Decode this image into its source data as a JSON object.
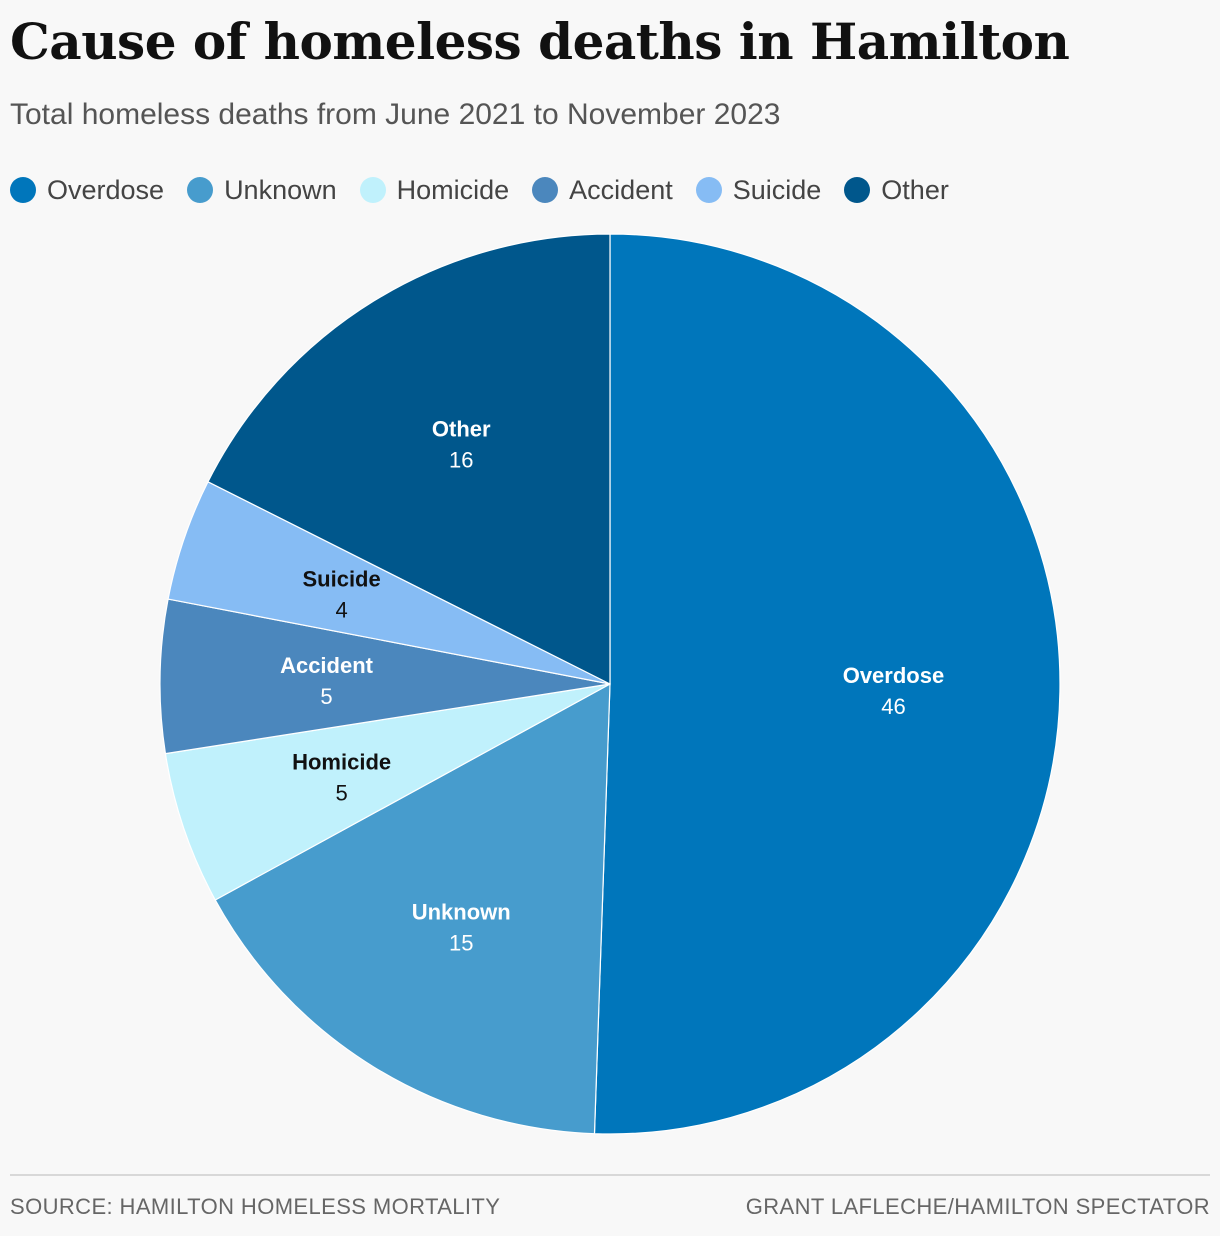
{
  "title": "Cause of homeless deaths in Hamilton",
  "subtitle": "Total homeless deaths from June 2021 to November 2023",
  "source": "SOURCE: HAMILTON HOMELESS MORTALITY",
  "credit": "GRANT LAFLECHE/HAMILTON SPECTATOR",
  "chart_data": {
    "type": "pie",
    "legend_position": "top-left",
    "slices": [
      {
        "label": "Overdose",
        "value": 46,
        "color": "#0076bb",
        "label_color": "#ffffff"
      },
      {
        "label": "Unknown",
        "value": 15,
        "color": "#479ccd",
        "label_color": "#ffffff"
      },
      {
        "label": "Homicide",
        "value": 5,
        "color": "#c0f1fc",
        "label_color": "#111111"
      },
      {
        "label": "Accident",
        "value": 5,
        "color": "#4b87bd",
        "label_color": "#ffffff"
      },
      {
        "label": "Suicide",
        "value": 4,
        "color": "#86bcf4",
        "label_color": "#111111"
      },
      {
        "label": "Other",
        "value": 16,
        "color": "#00578c",
        "label_color": "#ffffff"
      }
    ]
  }
}
